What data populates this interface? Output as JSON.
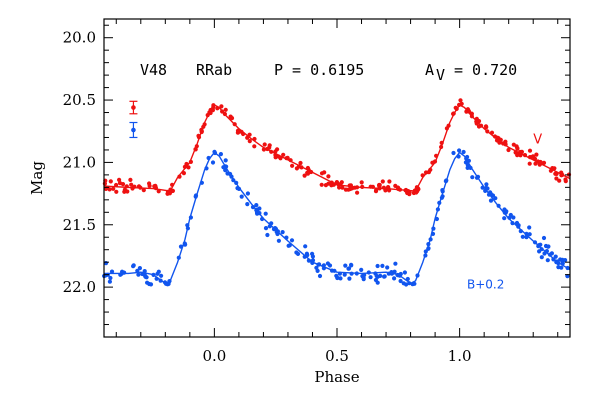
{
  "chart_data": {
    "type": "scatter",
    "title": "",
    "xlabel": "Phase",
    "ylabel": "Mag",
    "xlim": [
      -0.45,
      1.45
    ],
    "ylim": [
      22.4,
      19.85
    ],
    "y_inverted": true,
    "xticks": [
      0.0,
      0.5,
      1.0
    ],
    "xtick_labels": [
      "0.0",
      "0.5",
      "1.0"
    ],
    "yticks": [
      20.0,
      20.5,
      21.0,
      21.5,
      22.0
    ],
    "ytick_labels": [
      "20.0",
      "20.5",
      "21.0",
      "21.5",
      "22.0"
    ],
    "grid": false,
    "header": {
      "star": "V48",
      "type": "RRab",
      "period": "P = 0.6195",
      "amp_label": "A",
      "amp_sub": "V",
      "amp_value": "= 0.720"
    },
    "series": [
      {
        "name": "V",
        "color": "#ee1111",
        "label_text": "V",
        "label_pos_data": [
          1.3,
          20.85
        ],
        "curve": [
          [
            -0.45,
            21.19
          ],
          [
            -0.35,
            21.2
          ],
          [
            -0.25,
            21.21
          ],
          [
            -0.18,
            21.23
          ],
          [
            -0.15,
            21.12
          ],
          [
            -0.1,
            21.0
          ],
          [
            -0.07,
            20.85
          ],
          [
            -0.04,
            20.68
          ],
          [
            -0.02,
            20.6
          ],
          [
            0.0,
            20.54
          ],
          [
            0.02,
            20.56
          ],
          [
            0.05,
            20.63
          ],
          [
            0.1,
            20.73
          ],
          [
            0.15,
            20.81
          ],
          [
            0.2,
            20.88
          ],
          [
            0.3,
            20.98
          ],
          [
            0.4,
            21.08
          ],
          [
            0.5,
            21.18
          ],
          [
            0.6,
            21.2
          ],
          [
            0.7,
            21.21
          ],
          [
            0.82,
            21.23
          ],
          [
            0.85,
            21.12
          ],
          [
            0.9,
            21.0
          ],
          [
            0.93,
            20.85
          ],
          [
            0.96,
            20.68
          ],
          [
            0.98,
            20.6
          ],
          [
            1.0,
            20.54
          ],
          [
            1.02,
            20.56
          ],
          [
            1.05,
            20.63
          ],
          [
            1.1,
            20.73
          ],
          [
            1.15,
            20.81
          ],
          [
            1.2,
            20.88
          ],
          [
            1.3,
            20.98
          ],
          [
            1.4,
            21.08
          ],
          [
            1.45,
            21.13
          ]
        ],
        "error_bar": {
          "x": -0.33,
          "y": 20.56,
          "err": 0.05
        }
      },
      {
        "name": "B+0.2",
        "color": "#1155ee",
        "label_text": "B+0.2",
        "label_pos_data": [
          1.03,
          22.01
        ],
        "curve": [
          [
            -0.45,
            21.89
          ],
          [
            -0.35,
            21.89
          ],
          [
            -0.3,
            21.88
          ],
          [
            -0.25,
            21.9
          ],
          [
            -0.2,
            21.97
          ],
          [
            -0.18,
            21.95
          ],
          [
            -0.15,
            21.8
          ],
          [
            -0.12,
            21.62
          ],
          [
            -0.1,
            21.45
          ],
          [
            -0.07,
            21.25
          ],
          [
            -0.04,
            21.06
          ],
          [
            -0.02,
            20.97
          ],
          [
            0.0,
            20.92
          ],
          [
            0.02,
            20.95
          ],
          [
            0.05,
            21.05
          ],
          [
            0.1,
            21.2
          ],
          [
            0.15,
            21.33
          ],
          [
            0.2,
            21.45
          ],
          [
            0.3,
            21.63
          ],
          [
            0.4,
            21.8
          ],
          [
            0.5,
            21.88
          ],
          [
            0.6,
            21.89
          ],
          [
            0.7,
            21.88
          ],
          [
            0.75,
            21.9
          ],
          [
            0.8,
            21.97
          ],
          [
            0.82,
            21.95
          ],
          [
            0.85,
            21.8
          ],
          [
            0.88,
            21.62
          ],
          [
            0.9,
            21.45
          ],
          [
            0.93,
            21.25
          ],
          [
            0.96,
            21.06
          ],
          [
            0.98,
            20.97
          ],
          [
            1.0,
            20.92
          ],
          [
            1.02,
            20.95
          ],
          [
            1.05,
            21.05
          ],
          [
            1.1,
            21.2
          ],
          [
            1.15,
            21.33
          ],
          [
            1.2,
            21.45
          ],
          [
            1.3,
            21.63
          ],
          [
            1.4,
            21.8
          ],
          [
            1.45,
            21.86
          ]
        ],
        "error_bar": {
          "x": -0.33,
          "y": 20.74,
          "err": 0.06
        }
      }
    ]
  }
}
